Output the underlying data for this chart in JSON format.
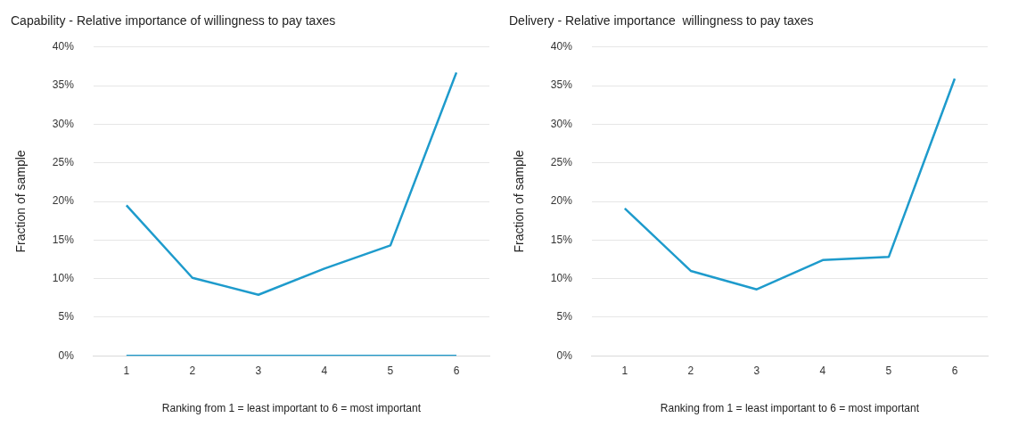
{
  "chart_data": [
    {
      "type": "line",
      "title": "Capability - Relative importance of willingness to pay taxes",
      "xlabel": "Ranking from 1 = least important to 6 = most important",
      "ylabel": "Fraction of sample",
      "categories": [
        "1",
        "2",
        "3",
        "4",
        "5",
        "6"
      ],
      "series": [
        {
          "color": "#1e9bcc",
          "values": [
            19.5,
            10.1,
            7.9,
            11.3,
            14.3,
            36.7
          ]
        },
        {
          "color": "#1e9bcc",
          "values": [
            0,
            0,
            0,
            0,
            0,
            0
          ]
        }
      ],
      "ylim": [
        0,
        40
      ],
      "yticks": [
        {
          "value": 0,
          "label": "0%"
        },
        {
          "value": 5,
          "label": "5%"
        },
        {
          "value": 10,
          "label": "10%"
        },
        {
          "value": 15,
          "label": "15%"
        },
        {
          "value": 20,
          "label": "20%"
        },
        {
          "value": 25,
          "label": "25%"
        },
        {
          "value": 30,
          "label": "30%"
        },
        {
          "value": 35,
          "label": "35%"
        },
        {
          "value": 40,
          "label": "40%"
        }
      ],
      "grid": "y",
      "legend": false,
      "marker": "none",
      "line_style": "solid"
    },
    {
      "type": "line",
      "title": "Delivery - Relative importance  willingness to pay taxes",
      "xlabel": "Ranking from 1 = least important to 6 = most important",
      "ylabel": "Fraction of sample",
      "categories": [
        "1",
        "2",
        "3",
        "4",
        "5",
        "6"
      ],
      "series": [
        {
          "color": "#1e9bcc",
          "values": [
            19.1,
            11.0,
            8.6,
            12.4,
            12.8,
            35.9
          ]
        }
      ],
      "ylim": [
        0,
        40
      ],
      "yticks": [
        {
          "value": 0,
          "label": "0%"
        },
        {
          "value": 5,
          "label": "5%"
        },
        {
          "value": 10,
          "label": "10%"
        },
        {
          "value": 15,
          "label": "15%"
        },
        {
          "value": 20,
          "label": "20%"
        },
        {
          "value": 25,
          "label": "25%"
        },
        {
          "value": 30,
          "label": "30%"
        },
        {
          "value": 35,
          "label": "35%"
        },
        {
          "value": 40,
          "label": "40%"
        }
      ],
      "grid": "y",
      "legend": false,
      "marker": "none",
      "line_style": "solid"
    }
  ]
}
